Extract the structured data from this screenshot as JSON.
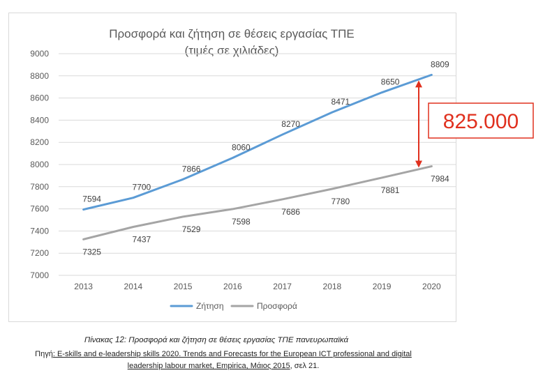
{
  "chart_data": {
    "type": "line",
    "title": "Προσφορά και ζήτηση σε θέσεις εργασίας ΤΠΕ",
    "subtitle": "(τιμές σε χιλιάδες)",
    "x": [
      "2013",
      "2014",
      "2015",
      "2016",
      "2017",
      "2018",
      "2019",
      "2020"
    ],
    "ylim": [
      7000,
      9000
    ],
    "yticks": [
      "7000",
      "7200",
      "7400",
      "7600",
      "7800",
      "8000",
      "8200",
      "8400",
      "8600",
      "8800",
      "9000"
    ],
    "grid": true,
    "legend_position": "bottom",
    "series": [
      {
        "name": "Ζήτηση",
        "color": "#5b9bd5",
        "values": [
          7594,
          7700,
          7866,
          8060,
          8270,
          8471,
          8650,
          8809
        ]
      },
      {
        "name": "Προσφορά",
        "color": "#a5a5a5",
        "values": [
          7325,
          7437,
          7529,
          7598,
          7686,
          7780,
          7881,
          7984
        ]
      }
    ],
    "annotation": {
      "text": "825.000",
      "color": "#e0301e"
    }
  },
  "caption": "Πίνακας 12: Προσφορά και ζήτηση σε θέσεις εργασίας ΤΠΕ πανευρωπαϊκά",
  "source": {
    "prefix": "Πηγή",
    "line1": ": E-skills and e-leadership skills 2020. Trends and Forecasts for the European ICT professional and digital",
    "line2": "leadership labour market, Empirica, Μάιος 2015",
    "suffix": ", σελ 21."
  }
}
